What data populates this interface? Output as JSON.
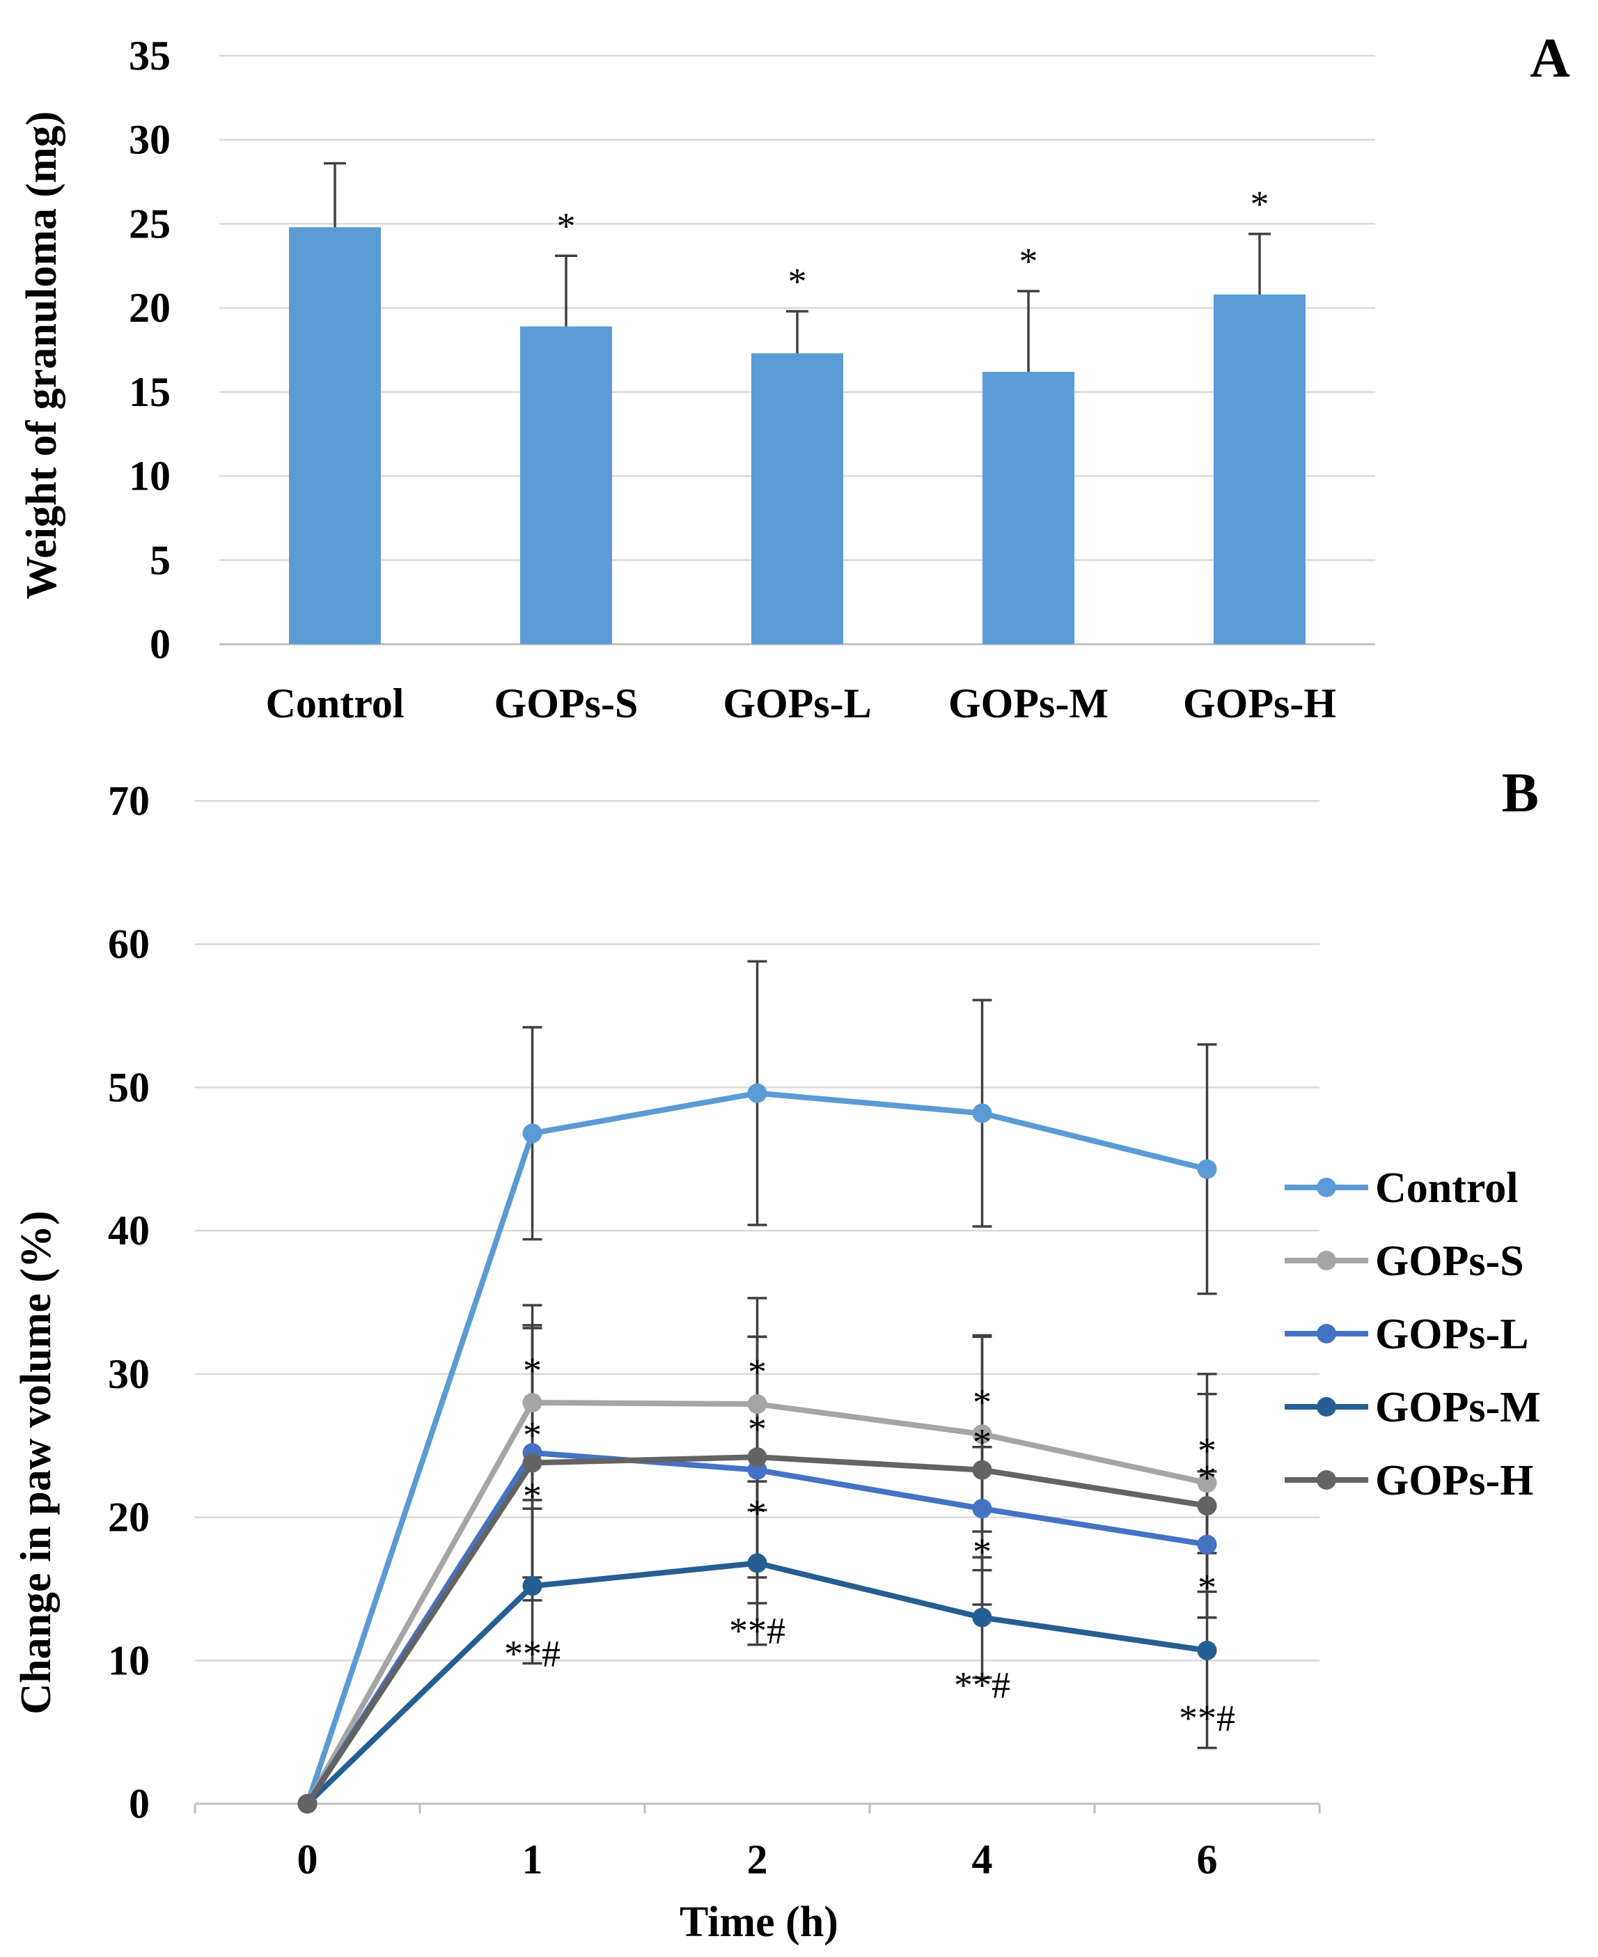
{
  "chart_data": [
    {
      "type": "bar",
      "panel_label": "A",
      "ylabel": "Weight of granuloma (mg)",
      "xlabel": "",
      "ylim": [
        0,
        35
      ],
      "y_ticks": [
        0,
        5,
        10,
        15,
        20,
        25,
        30,
        35
      ],
      "grid": true,
      "color": "#5b9bd5",
      "categories": [
        "Control",
        "GOPs-S",
        "GOPs-L",
        "GOPs-M",
        "GOPs-H"
      ],
      "values": [
        24.8,
        18.9,
        17.3,
        16.2,
        20.8
      ],
      "error": [
        3.8,
        4.2,
        2.5,
        4.8,
        3.6
      ],
      "significance": [
        "",
        "*",
        "*",
        "*",
        "*"
      ]
    },
    {
      "type": "line",
      "panel_label": "B",
      "ylabel": "Change in paw volume (%)",
      "xlabel": "Time (h)",
      "ylim": [
        0,
        70
      ],
      "y_ticks": [
        0,
        10,
        20,
        30,
        40,
        50,
        60,
        70
      ],
      "grid": true,
      "legend_position": "right",
      "x": [
        "0",
        "1",
        "2",
        "4",
        "6"
      ],
      "series": [
        {
          "name": "Control",
          "color": "#5b9bd5",
          "values": [
            0,
            46.8,
            49.6,
            48.2,
            44.3
          ],
          "error": [
            0,
            7.4,
            9.2,
            7.9,
            8.7
          ],
          "significance": [
            "",
            "",
            "",
            "",
            ""
          ]
        },
        {
          "name": "GOPs-S",
          "color": "#a5a5a5",
          "values": [
            0,
            28.0,
            27.9,
            25.8,
            22.4
          ],
          "error": [
            0,
            6.8,
            7.4,
            6.8,
            7.6
          ],
          "significance": [
            "",
            "*",
            "*",
            "*",
            "*"
          ]
        },
        {
          "name": "GOPs-L",
          "color": "#4472c4",
          "values": [
            0,
            24.5,
            23.3,
            20.6,
            18.1
          ],
          "error": [
            0,
            8.7,
            9.3,
            4.3,
            5.1
          ],
          "significance": [
            "",
            "*",
            "*",
            "*",
            "*"
          ]
        },
        {
          "name": "GOPs-M",
          "color": "#255e91",
          "values": [
            0,
            15.2,
            16.8,
            13.0,
            10.7
          ],
          "error": [
            0,
            5.4,
            5.7,
            4.2,
            6.8
          ],
          "significance": [
            "",
            "**#",
            "**#",
            "**#",
            "**#"
          ]
        },
        {
          "name": "GOPs-H",
          "color": "#636363",
          "values": [
            0,
            23.8,
            24.2,
            23.3,
            20.8
          ],
          "error": [
            0,
            9.6,
            8.4,
            9.4,
            7.8
          ],
          "significance": [
            "",
            "*",
            "*",
            "*",
            "*"
          ]
        }
      ]
    }
  ]
}
